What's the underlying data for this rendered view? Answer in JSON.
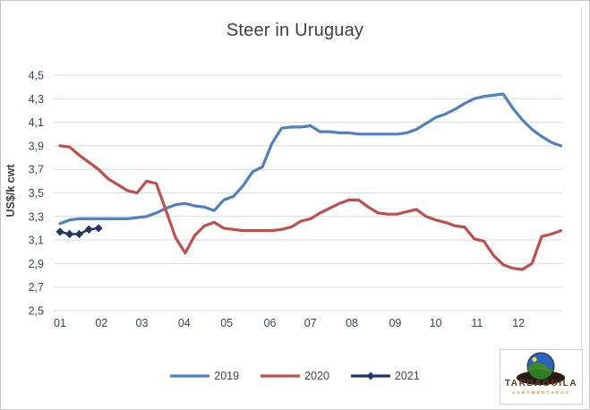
{
  "window": {
    "background": "#ffffff",
    "border_color": "#c6c6c6"
  },
  "chart_data": {
    "type": "line",
    "title": "Steer in Uruguay",
    "xlabel": "",
    "ylabel": "US$/k cwt",
    "ylim": [
      2.5,
      4.5
    ],
    "ytick_step": 0.2,
    "ytick_labels": [
      "4,5",
      "4,3",
      "4,1",
      "3,9",
      "3,7",
      "3,5",
      "3,3",
      "3,1",
      "2,9",
      "2,7",
      "2,5"
    ],
    "xtick_labels": [
      "01",
      "02",
      "03",
      "04",
      "05",
      "06",
      "07",
      "08",
      "09",
      "10",
      "11",
      "12"
    ],
    "xtick_weeks": [
      1.0,
      5.3,
      9.5,
      13.9,
      18.3,
      22.8,
      27.0,
      31.3,
      35.8,
      40.0,
      44.3,
      48.6
    ],
    "x_unit": "week-of-year",
    "x_total_weeks": 53,
    "grid": true,
    "gridline_color": "#d9d9d9",
    "legend_position": "bottom",
    "series": [
      {
        "name": "2019",
        "color": "#4F81BD",
        "marker": "none",
        "values": [
          3.24,
          3.27,
          3.28,
          3.28,
          3.28,
          3.28,
          3.28,
          3.28,
          3.29,
          3.3,
          3.33,
          3.37,
          3.4,
          3.41,
          3.39,
          3.38,
          3.35,
          3.44,
          3.47,
          3.56,
          3.68,
          3.72,
          3.92,
          4.05,
          4.06,
          4.06,
          4.07,
          4.02,
          4.02,
          4.01,
          4.01,
          4.0,
          4.0,
          4.0,
          4.0,
          4.0,
          4.01,
          4.04,
          4.09,
          4.14,
          4.17,
          4.21,
          4.26,
          4.3,
          4.32,
          4.33,
          4.34,
          4.22,
          4.12,
          4.04,
          3.98,
          3.93,
          3.9
        ]
      },
      {
        "name": "2020",
        "color": "#C0504D",
        "marker": "none",
        "values": [
          3.9,
          3.89,
          3.82,
          3.76,
          3.7,
          3.62,
          3.57,
          3.52,
          3.5,
          3.6,
          3.58,
          3.35,
          3.12,
          2.99,
          3.14,
          3.22,
          3.25,
          3.2,
          3.19,
          3.18,
          3.18,
          3.18,
          3.18,
          3.19,
          3.21,
          3.26,
          3.28,
          3.33,
          3.37,
          3.41,
          3.44,
          3.44,
          3.38,
          3.33,
          3.32,
          3.32,
          3.34,
          3.36,
          3.3,
          3.27,
          3.25,
          3.22,
          3.21,
          3.11,
          3.09,
          2.97,
          2.89,
          2.86,
          2.85,
          2.9,
          3.13,
          3.15,
          3.18
        ]
      },
      {
        "name": "2021",
        "color": "#1F3864",
        "marker": "diamond",
        "values": [
          3.17,
          3.15,
          3.15,
          3.19,
          3.2
        ]
      }
    ]
  },
  "logo": {
    "brand": "TARDAGUILA",
    "subtext": "AGROMERCADOS",
    "colors": {
      "brand_text": "#5f3b1e",
      "subtext": "#e0862e",
      "globe_sky": "#2e62b8",
      "globe_hill": "#3c8a28",
      "globe_sun": "#f2e43a",
      "globe_shadow": "#2a1a10"
    }
  }
}
